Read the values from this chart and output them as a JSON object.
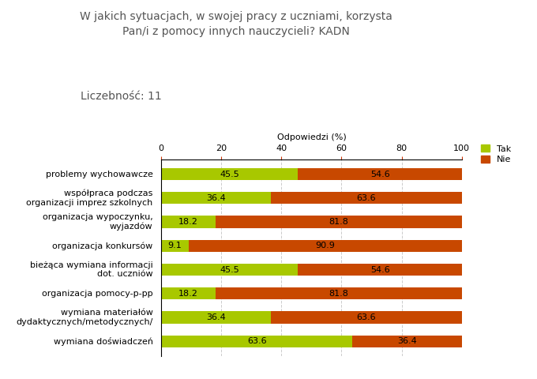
{
  "title": "W jakich sytuacjach, w swojej pracy z uczniami, korzysta\nPan/i z pomocy innych nauczycieli? KADN",
  "subtitle": "Liczebność: 11",
  "xlabel": "Odpowiedzi (%)",
  "categories": [
    "problemy wychowawcze",
    "współpraca podczas\norganizacji imprez szkolnych",
    "organizacja wypoczynku,\nwyjazdów",
    "organizacja konkursów",
    "bieżąca wymiana informacji\ndot. uczniów",
    "organizacja pomocy-p-pp",
    "wymiana materiałów\ndydaktycznych/metodycznych/",
    "wymiana doświadczeń"
  ],
  "tak_values": [
    45.5,
    36.4,
    18.2,
    9.1,
    45.5,
    18.2,
    36.4,
    63.6
  ],
  "nie_values": [
    54.6,
    63.6,
    81.8,
    90.9,
    54.6,
    81.8,
    63.6,
    36.4
  ],
  "tak_color": "#a8c800",
  "nie_color": "#c84800",
  "background_color": "#ffffff",
  "grid_color": "#cccccc",
  "xlim": [
    0,
    100
  ],
  "xticks": [
    0,
    20,
    40,
    60,
    80,
    100
  ],
  "bar_height": 0.5,
  "title_fontsize": 10,
  "subtitle_fontsize": 10,
  "label_fontsize": 8,
  "tick_fontsize": 8,
  "legend_fontsize": 8,
  "ylabel_fontsize": 8
}
